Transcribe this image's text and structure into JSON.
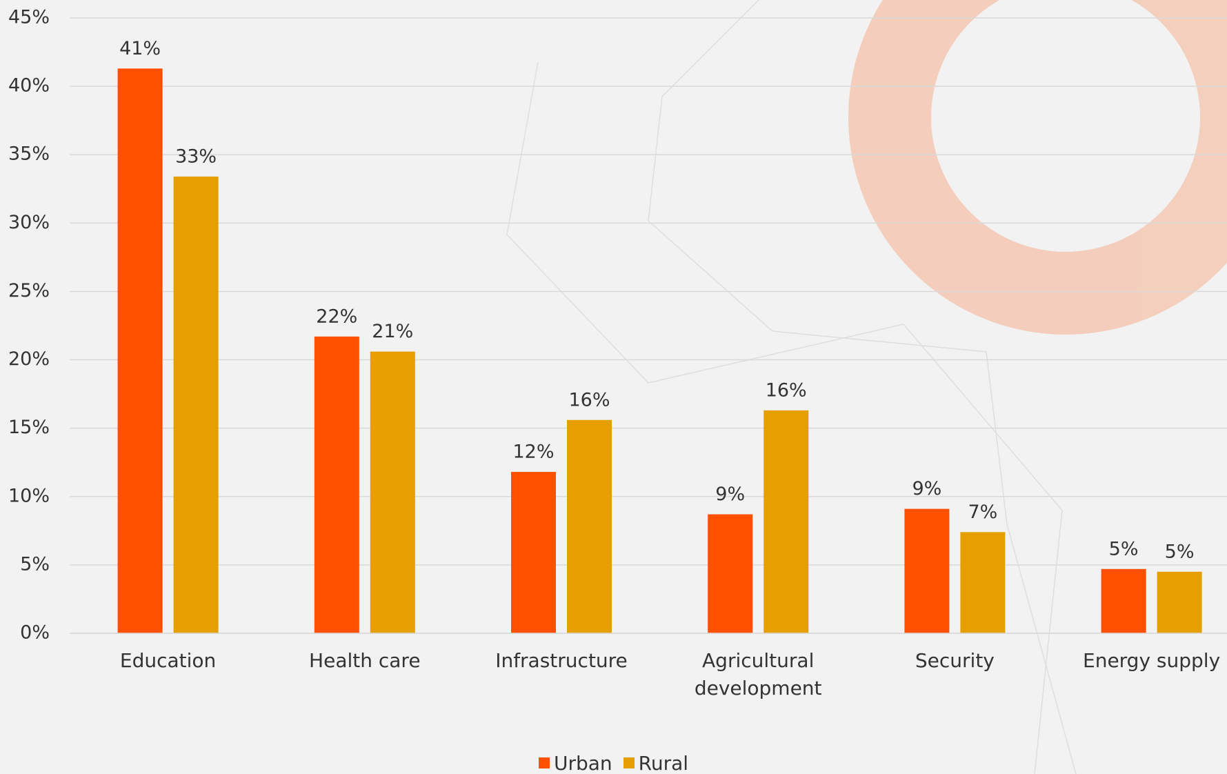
{
  "chart_data": {
    "type": "bar",
    "categories": [
      "Education",
      "Health care",
      "Infrastructure",
      "Agricultural development",
      "Security",
      "Energy supply"
    ],
    "series": [
      {
        "name": "Urban",
        "color": "#ff5000",
        "values": [
          41.3,
          21.7,
          11.8,
          8.7,
          9.1,
          4.7
        ],
        "value_labels": [
          "41%",
          "22%",
          "12%",
          "9%",
          "9%",
          "5%"
        ]
      },
      {
        "name": "Rural",
        "color": "#e69f00",
        "values": [
          33.4,
          20.6,
          15.6,
          16.3,
          7.4,
          4.5
        ],
        "value_labels": [
          "33%",
          "21%",
          "16%",
          "16%",
          "7%",
          "5%"
        ]
      }
    ],
    "ylim": [
      0,
      45
    ],
    "yticks": [
      {
        "value": 0,
        "label": "0%"
      },
      {
        "value": 5,
        "label": "5%"
      },
      {
        "value": 10,
        "label": "10%"
      },
      {
        "value": 15,
        "label": "15%"
      },
      {
        "value": 20,
        "label": "20%"
      },
      {
        "value": 25,
        "label": "25%"
      },
      {
        "value": 30,
        "label": "30%"
      },
      {
        "value": 35,
        "label": "35%"
      },
      {
        "value": 40,
        "label": "40%"
      },
      {
        "value": 45,
        "label": "45%"
      }
    ],
    "grid": true,
    "legend": "bottom"
  }
}
